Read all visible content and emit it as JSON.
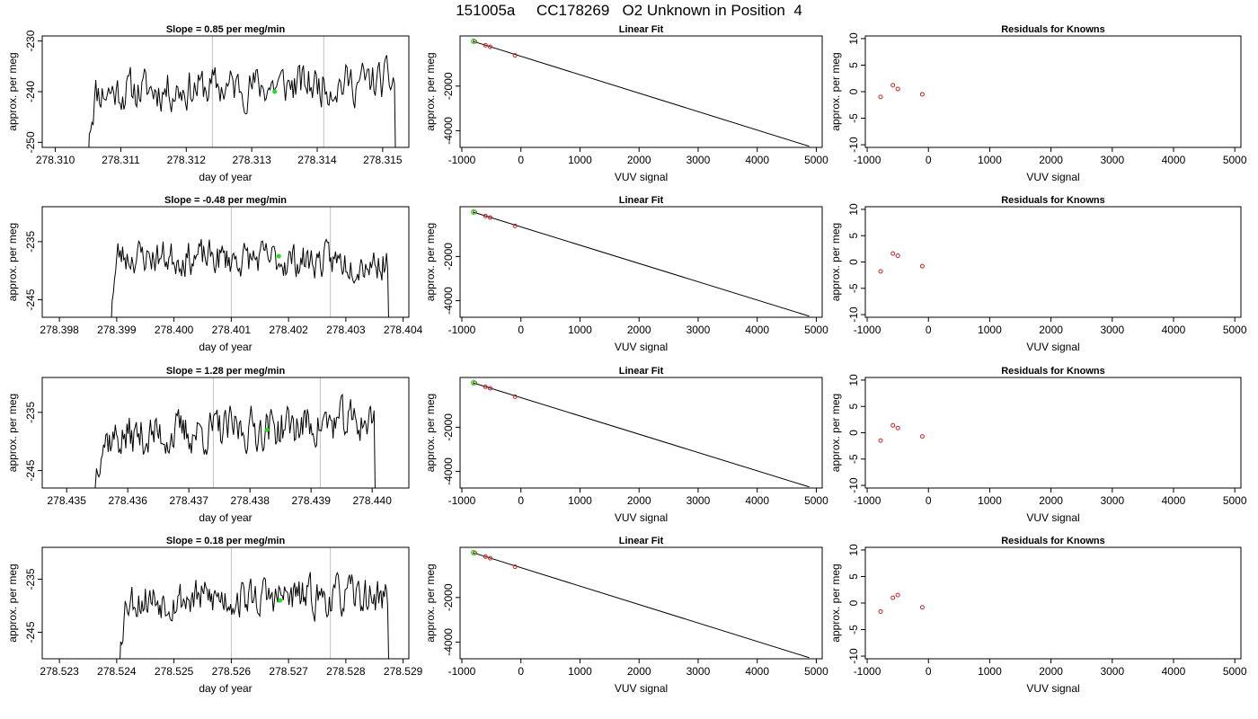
{
  "title": "151005a     CC178269   O2 Unknown in Position  4",
  "colors": {
    "trace": "#000000",
    "grid": "#bfbfbf",
    "highlight": "#22dd22",
    "known": "#cc2222"
  },
  "chart_data": [
    {
      "type": "line",
      "panel": "time-series",
      "title": "Slope =  0.85  per meg/min",
      "xlabel": "day of year",
      "ylabel": "approx. per meg",
      "xlim": [
        278.3098,
        278.3154
      ],
      "ylim": [
        -251,
        -229
      ],
      "xticks": [
        "278.310",
        "278.311",
        "278.312",
        "278.313",
        "278.314",
        "278.315"
      ],
      "xtick_values": [
        278.31,
        278.311,
        278.312,
        278.313,
        278.314,
        278.315
      ],
      "yticks": [
        "-250",
        "-240",
        "-230"
      ],
      "ytick_values": [
        -250,
        -240,
        -230
      ],
      "vlines": [
        278.3124,
        278.3141
      ],
      "series": [
        {
          "x_start": 278.3105,
          "x_end": 278.3152,
          "base": -239,
          "amplitude": 2.2,
          "trend": 0.85,
          "drop_start": -256,
          "drop_end": -256,
          "seed": 11
        }
      ],
      "highlight_point": {
        "x": 278.31335,
        "y": -240
      }
    },
    {
      "type": "scatter",
      "panel": "linear-fit",
      "title": "Linear Fit",
      "xlabel": "VUV signal",
      "ylabel": "approx. per meg",
      "xlim": [
        -1030,
        5100
      ],
      "ylim": [
        -4750,
        250
      ],
      "xticks": [
        "-1000",
        "0",
        "1000",
        "2000",
        "3000",
        "4000",
        "5000"
      ],
      "xtick_values": [
        -1000,
        0,
        1000,
        2000,
        3000,
        4000,
        5000
      ],
      "yticks": [
        "-4000",
        "-2000"
      ],
      "ytick_values": [
        -4000,
        -2000
      ],
      "fit_line": {
        "x": [
          -800,
          4880
        ],
        "y": [
          0,
          -4700
        ]
      },
      "known_points": [
        {
          "x": -780,
          "y": 0
        },
        {
          "x": -600,
          "y": -170
        },
        {
          "x": -520,
          "y": -240
        },
        {
          "x": -100,
          "y": -620
        }
      ],
      "unknown_point": {
        "x": -800,
        "y": 10
      }
    },
    {
      "type": "scatter",
      "panel": "residuals",
      "title": "Residuals for Knowns",
      "xlabel": "VUV signal",
      "ylabel": "approx. per meg",
      "xlim": [
        -1030,
        5100
      ],
      "ylim": [
        -10.5,
        10.5
      ],
      "xticks": [
        "-1000",
        "0",
        "1000",
        "2000",
        "3000",
        "4000",
        "5000"
      ],
      "xtick_values": [
        -1000,
        0,
        1000,
        2000,
        3000,
        4000,
        5000
      ],
      "yticks": [
        "-10",
        "-5",
        "0",
        "5",
        "10"
      ],
      "ytick_values": [
        -10,
        -5,
        0,
        5,
        10
      ],
      "points": [
        {
          "x": -780,
          "y": -1.0
        },
        {
          "x": -580,
          "y": 1.2
        },
        {
          "x": -500,
          "y": 0.5
        },
        {
          "x": -100,
          "y": -0.5
        }
      ]
    },
    {
      "type": "line",
      "panel": "time-series",
      "title": "Slope =  -0.48  per meg/min",
      "xlabel": "day of year",
      "ylabel": "approx. per meg",
      "xlim": [
        278.3977,
        278.4041
      ],
      "ylim": [
        -248,
        -229
      ],
      "xticks": [
        "278.398",
        "278.399",
        "278.400",
        "278.401",
        "278.402",
        "278.403",
        "278.404"
      ],
      "xtick_values": [
        278.398,
        278.399,
        278.4,
        278.401,
        278.402,
        278.403,
        278.404
      ],
      "yticks": [
        "-245",
        "-235"
      ],
      "ytick_values": [
        -245,
        -235
      ],
      "vlines": [
        278.401,
        278.40273
      ],
      "series": [
        {
          "x_start": 278.3989,
          "x_end": 278.40375,
          "base": -238,
          "amplitude": 1.6,
          "trend": -0.48,
          "drop_start": -250,
          "drop_end": -250,
          "seed": 23
        }
      ],
      "highlight_point": {
        "x": 278.40183,
        "y": -237.5
      }
    },
    {
      "type": "scatter",
      "panel": "linear-fit",
      "title": "Linear Fit",
      "xlabel": "VUV signal",
      "ylabel": "approx. per meg",
      "xlim": [
        -1030,
        5100
      ],
      "ylim": [
        -4750,
        250
      ],
      "xticks": [
        "-1000",
        "0",
        "1000",
        "2000",
        "3000",
        "4000",
        "5000"
      ],
      "xtick_values": [
        -1000,
        0,
        1000,
        2000,
        3000,
        4000,
        5000
      ],
      "yticks": [
        "-4000",
        "-2000"
      ],
      "ytick_values": [
        -4000,
        -2000
      ],
      "fit_line": {
        "x": [
          -800,
          4880
        ],
        "y": [
          0,
          -4700
        ]
      },
      "known_points": [
        {
          "x": -780,
          "y": 0
        },
        {
          "x": -600,
          "y": -170
        },
        {
          "x": -520,
          "y": -240
        },
        {
          "x": -100,
          "y": -620
        }
      ],
      "unknown_point": {
        "x": -800,
        "y": 10
      }
    },
    {
      "type": "scatter",
      "panel": "residuals",
      "title": "Residuals for Knowns",
      "xlabel": "VUV signal",
      "ylabel": "approx. per meg",
      "xlim": [
        -1030,
        5100
      ],
      "ylim": [
        -10.5,
        10.5
      ],
      "xticks": [
        "-1000",
        "0",
        "1000",
        "2000",
        "3000",
        "4000",
        "5000"
      ],
      "xtick_values": [
        -1000,
        0,
        1000,
        2000,
        3000,
        4000,
        5000
      ],
      "yticks": [
        "-10",
        "-5",
        "0",
        "5",
        "10"
      ],
      "ytick_values": [
        -10,
        -5,
        0,
        5,
        10
      ],
      "points": [
        {
          "x": -780,
          "y": -1.8
        },
        {
          "x": -580,
          "y": 1.6
        },
        {
          "x": -500,
          "y": 1.2
        },
        {
          "x": -100,
          "y": -0.8
        }
      ]
    },
    {
      "type": "line",
      "panel": "time-series",
      "title": "Slope =  1.28  per meg/min",
      "xlabel": "day of year",
      "ylabel": "approx. per meg",
      "xlim": [
        278.4346,
        278.4406
      ],
      "ylim": [
        -248,
        -229
      ],
      "xticks": [
        "278.435",
        "278.436",
        "278.437",
        "278.438",
        "278.439",
        "278.440"
      ],
      "xtick_values": [
        278.435,
        278.436,
        278.437,
        278.438,
        278.439,
        278.44
      ],
      "yticks": [
        "-245",
        "-235"
      ],
      "ytick_values": [
        -245,
        -235
      ],
      "vlines": [
        278.4374,
        278.43915
      ],
      "series": [
        {
          "x_start": 278.43545,
          "x_end": 278.44005,
          "base": -238,
          "amplitude": 2.0,
          "trend": 1.28,
          "drop_start": -250,
          "drop_end": -250,
          "seed": 37
        }
      ],
      "highlight_point": {
        "x": 278.43828,
        "y": -238
      }
    },
    {
      "type": "scatter",
      "panel": "linear-fit",
      "title": "Linear Fit",
      "xlabel": "VUV signal",
      "ylabel": "approx. per meg",
      "xlim": [
        -1030,
        5100
      ],
      "ylim": [
        -4750,
        250
      ],
      "xticks": [
        "-1000",
        "0",
        "1000",
        "2000",
        "3000",
        "4000",
        "5000"
      ],
      "xtick_values": [
        -1000,
        0,
        1000,
        2000,
        3000,
        4000,
        5000
      ],
      "yticks": [
        "-4000",
        "-2000"
      ],
      "ytick_values": [
        -4000,
        -2000
      ],
      "fit_line": {
        "x": [
          -800,
          4880
        ],
        "y": [
          0,
          -4700
        ]
      },
      "known_points": [
        {
          "x": -780,
          "y": 0
        },
        {
          "x": -600,
          "y": -170
        },
        {
          "x": -520,
          "y": -240
        },
        {
          "x": -100,
          "y": -620
        }
      ],
      "unknown_point": {
        "x": -800,
        "y": 10
      }
    },
    {
      "type": "scatter",
      "panel": "residuals",
      "title": "Residuals for Knowns",
      "xlabel": "VUV signal",
      "ylabel": "approx. per meg",
      "xlim": [
        -1030,
        5100
      ],
      "ylim": [
        -10.5,
        10.5
      ],
      "xticks": [
        "-1000",
        "0",
        "1000",
        "2000",
        "3000",
        "4000",
        "5000"
      ],
      "xtick_values": [
        -1000,
        0,
        1000,
        2000,
        3000,
        4000,
        5000
      ],
      "yticks": [
        "-10",
        "-5",
        "0",
        "5",
        "10"
      ],
      "ytick_values": [
        -10,
        -5,
        0,
        5,
        10
      ],
      "points": [
        {
          "x": -780,
          "y": -1.5
        },
        {
          "x": -580,
          "y": 1.4
        },
        {
          "x": -500,
          "y": 0.9
        },
        {
          "x": -100,
          "y": -0.7
        }
      ]
    },
    {
      "type": "line",
      "panel": "time-series",
      "title": "Slope =  0.18  per meg/min",
      "xlabel": "day of year",
      "ylabel": "approx. per meg",
      "xlim": [
        278.5227,
        278.5291
      ],
      "ylim": [
        -250,
        -229
      ],
      "xticks": [
        "278.523",
        "278.524",
        "278.525",
        "278.526",
        "278.527",
        "278.528",
        "278.529"
      ],
      "xtick_values": [
        278.523,
        278.524,
        278.525,
        278.526,
        278.527,
        278.528,
        278.529
      ],
      "yticks": [
        "-245",
        "-235"
      ],
      "ytick_values": [
        -245,
        -235
      ],
      "vlines": [
        278.526,
        278.52773
      ],
      "series": [
        {
          "x_start": 278.52405,
          "x_end": 278.52875,
          "base": -238.5,
          "amplitude": 2.0,
          "trend": 0.18,
          "drop_start": -252,
          "drop_end": -252,
          "seed": 53
        }
      ],
      "highlight_point": {
        "x": 278.52685,
        "y": -239
      }
    },
    {
      "type": "scatter",
      "panel": "linear-fit",
      "title": "Linear Fit",
      "xlabel": "VUV signal",
      "ylabel": "approx. per meg",
      "xlim": [
        -1030,
        5100
      ],
      "ylim": [
        -4750,
        250
      ],
      "xticks": [
        "-1000",
        "0",
        "1000",
        "2000",
        "3000",
        "4000",
        "5000"
      ],
      "xtick_values": [
        -1000,
        0,
        1000,
        2000,
        3000,
        4000,
        5000
      ],
      "yticks": [
        "-4000",
        "-2000"
      ],
      "ytick_values": [
        -4000,
        -2000
      ],
      "fit_line": {
        "x": [
          -800,
          4880
        ],
        "y": [
          0,
          -4700
        ]
      },
      "known_points": [
        {
          "x": -780,
          "y": 0
        },
        {
          "x": -600,
          "y": -170
        },
        {
          "x": -520,
          "y": -240
        },
        {
          "x": -100,
          "y": -620
        }
      ],
      "unknown_point": {
        "x": -800,
        "y": 10
      }
    },
    {
      "type": "scatter",
      "panel": "residuals",
      "title": "Residuals for Knowns",
      "xlabel": "VUV signal",
      "ylabel": "approx. per meg",
      "xlim": [
        -1030,
        5100
      ],
      "ylim": [
        -10.5,
        10.5
      ],
      "xticks": [
        "-1000",
        "0",
        "1000",
        "2000",
        "3000",
        "4000",
        "5000"
      ],
      "xtick_values": [
        -1000,
        0,
        1000,
        2000,
        3000,
        4000,
        5000
      ],
      "yticks": [
        "-10",
        "-5",
        "0",
        "5",
        "10"
      ],
      "ytick_values": [
        -10,
        -5,
        0,
        5,
        10
      ],
      "points": [
        {
          "x": -780,
          "y": -1.6
        },
        {
          "x": -580,
          "y": 1.0
        },
        {
          "x": -500,
          "y": 1.5
        },
        {
          "x": -100,
          "y": -0.8
        }
      ]
    }
  ]
}
